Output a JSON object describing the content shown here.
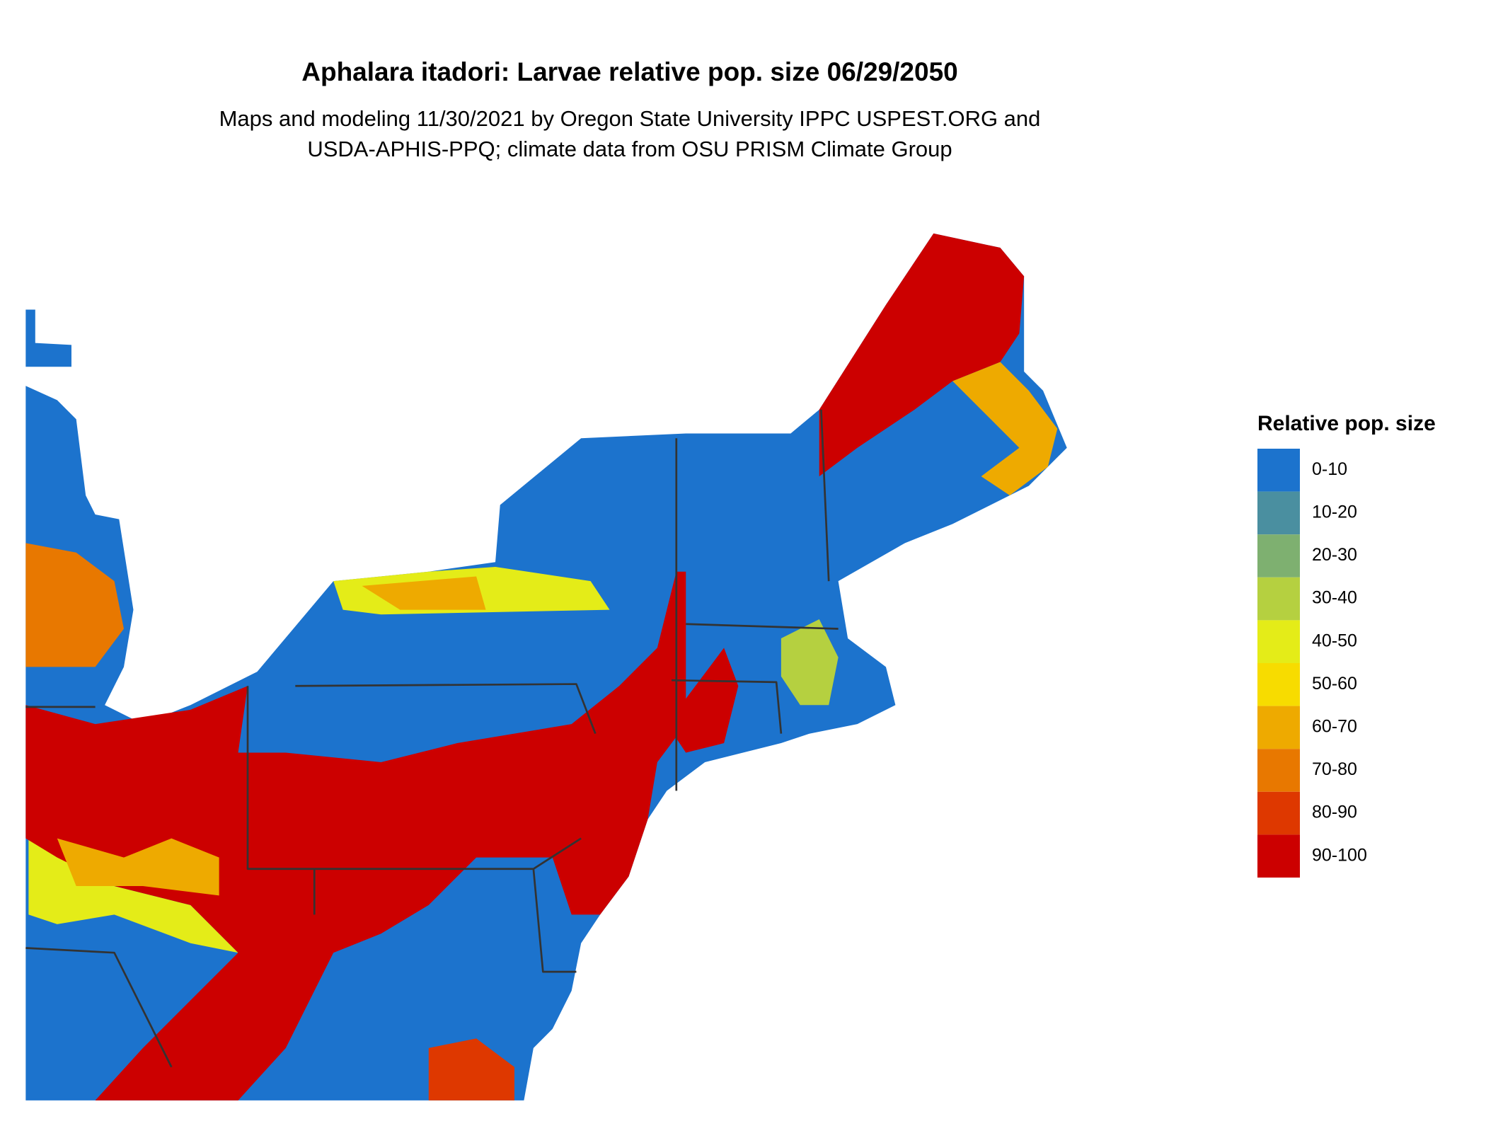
{
  "header": {
    "title": "Aphalara itadori: Larvae relative pop. size 06/29/2050",
    "subtitle_lines": [
      "Maps and modeling 11/30/2021 by Oregon State University IPPC USPEST.ORG and",
      "USDA-APHIS-PPQ; climate data from OSU PRISM Climate Group"
    ]
  },
  "legend": {
    "title": "Relative pop. size",
    "items": [
      {
        "label": "0-10",
        "color": "#1c73cd"
      },
      {
        "label": "10-20",
        "color": "#4a8fa0"
      },
      {
        "label": "20-30",
        "color": "#7eb070"
      },
      {
        "label": "30-40",
        "color": "#b5d040"
      },
      {
        "label": "40-50",
        "color": "#e4ec18"
      },
      {
        "label": "50-60",
        "color": "#f7dc00"
      },
      {
        "label": "60-70",
        "color": "#eeaa00"
      },
      {
        "label": "70-80",
        "color": "#e87800"
      },
      {
        "label": "80-90",
        "color": "#de3800"
      },
      {
        "label": "90-100",
        "color": "#cc0000"
      }
    ]
  }
}
